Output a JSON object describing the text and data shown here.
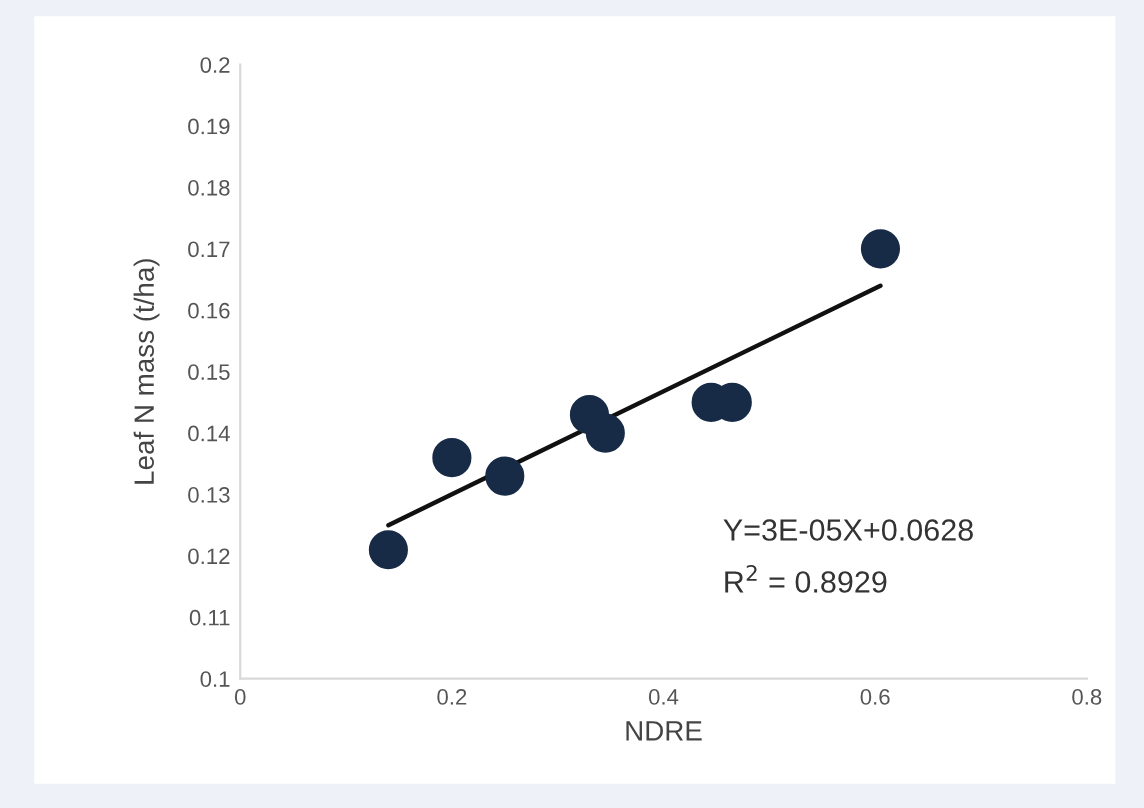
{
  "chart_data": {
    "type": "scatter",
    "xlabel": "NDRE",
    "ylabel": "Leaf N mass (t/ha)",
    "series": [
      {
        "marker": "circle",
        "color": "#172a46",
        "x": [
          0.14,
          0.2,
          0.25,
          0.33,
          0.345,
          0.445,
          0.465,
          0.605
        ],
        "values": [
          0.121,
          0.136,
          0.133,
          0.143,
          0.14,
          0.145,
          0.145,
          0.17
        ]
      },
      {
        "type": "line",
        "marker": "none",
        "color": "#111111",
        "x": [
          0.14,
          0.605
        ],
        "values": [
          0.125,
          0.164
        ]
      }
    ],
    "annotations": [
      "Y=3E-05X+0.0628",
      "R$^{2}$ = 0.8929"
    ],
    "xlim": [
      0,
      0.8
    ],
    "xticks": [
      0,
      0.2,
      0.4,
      0.6,
      0.8
    ],
    "ylim": [
      0.1,
      0.2
    ],
    "yticks": [
      0.1,
      0.11,
      0.12,
      0.13,
      0.14,
      0.15,
      0.16,
      0.17,
      0.18,
      0.19,
      0.2
    ],
    "grid": false,
    "legend": false,
    "line_style": "solid"
  }
}
